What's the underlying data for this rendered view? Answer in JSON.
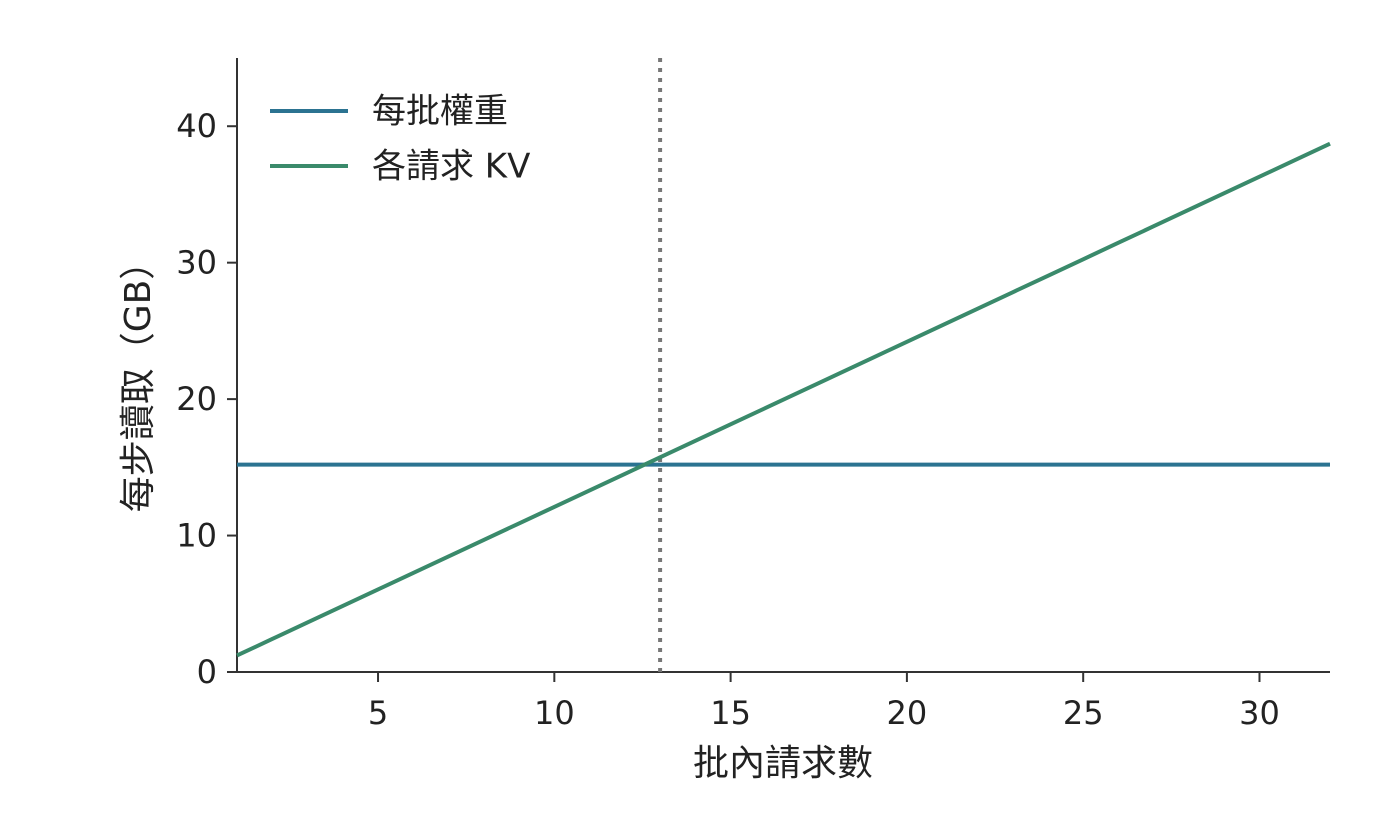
{
  "chart_data": {
    "type": "line",
    "x_label": "批內請求數",
    "y_label": "每步讀取（GB）",
    "x": [
      1,
      2,
      3,
      4,
      5,
      6,
      7,
      8,
      9,
      10,
      11,
      12,
      13,
      14,
      15,
      16,
      17,
      18,
      19,
      20,
      21,
      22,
      23,
      24,
      25,
      26,
      27,
      28,
      29,
      30,
      31,
      32
    ],
    "series": [
      {
        "name": "每批權重",
        "color": "#2b7391",
        "values": [
          15.2,
          15.2,
          15.2,
          15.2,
          15.2,
          15.2,
          15.2,
          15.2,
          15.2,
          15.2,
          15.2,
          15.2,
          15.2,
          15.2,
          15.2,
          15.2,
          15.2,
          15.2,
          15.2,
          15.2,
          15.2,
          15.2,
          15.2,
          15.2,
          15.2,
          15.2,
          15.2,
          15.2,
          15.2,
          15.2,
          15.2,
          15.2
        ]
      },
      {
        "name": "各請求 KV",
        "color": "#3a8a6b",
        "values": [
          1.21,
          2.42,
          3.63,
          4.84,
          6.05,
          7.26,
          8.47,
          9.68,
          10.89,
          12.1,
          13.31,
          14.52,
          15.73,
          16.94,
          18.15,
          19.36,
          20.57,
          21.78,
          22.99,
          24.2,
          25.41,
          26.62,
          27.83,
          29.04,
          30.25,
          31.46,
          32.67,
          33.88,
          35.09,
          36.3,
          37.51,
          38.72
        ]
      }
    ],
    "vline": 13,
    "vline_color": "#777777",
    "xlim": [
      1,
      32
    ],
    "xticks": [
      5,
      10,
      15,
      20,
      25,
      30
    ],
    "ylim": [
      0,
      45
    ],
    "yticks": [
      0,
      10,
      20,
      30,
      40
    ],
    "grid": false,
    "legend": "upper-left"
  }
}
